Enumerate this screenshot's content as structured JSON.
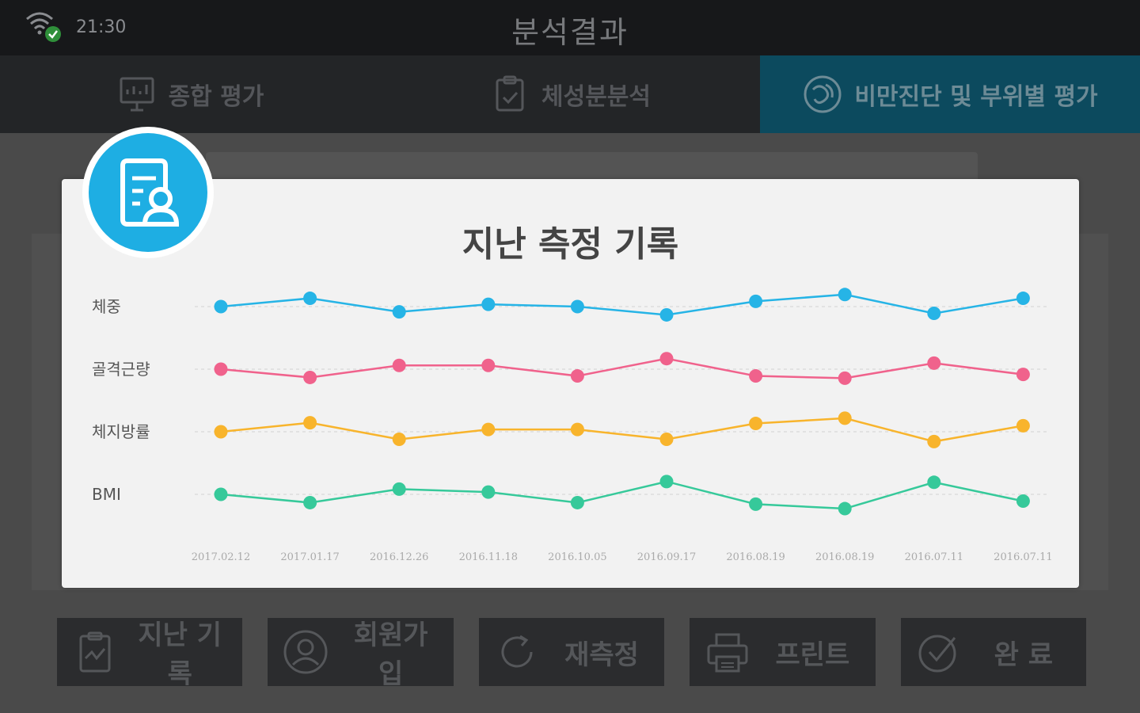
{
  "status": {
    "time": "21:30",
    "wifi_icon": "wifi-connected-icon"
  },
  "app": {
    "title": "분석결과"
  },
  "tabs": [
    {
      "label": "종합 평가",
      "icon": "presentation-icon"
    },
    {
      "label": "체성분분석",
      "icon": "clipboard-icon"
    },
    {
      "label": "비만진단 및 부위별 평가",
      "icon": "body-icon"
    }
  ],
  "bottom_buttons": [
    {
      "label": "지난 기록",
      "icon": "clipboard-chart-icon"
    },
    {
      "label": "회원가입",
      "icon": "user-icon"
    },
    {
      "label": "재측정",
      "icon": "refresh-icon"
    },
    {
      "label": "프린트",
      "icon": "printer-icon"
    },
    {
      "label": "완 료",
      "icon": "check-circle-icon"
    }
  ],
  "modal": {
    "title": "지난 측정 기록",
    "badge_icon": "profile-document-icon"
  },
  "chart_data": {
    "type": "line",
    "title": "지난 측정 기록",
    "grid": true,
    "x": [
      "2017.02.12",
      "2017.01.17",
      "2016.12.26",
      "2016.11.18",
      "2016.10.05",
      "2016.09.17",
      "2016.08.19",
      "2016.08.19",
      "2016.07.11",
      "2016.07.11"
    ],
    "series": [
      {
        "name": "체중",
        "color": "#26b4e6",
        "values": [
          0,
          11,
          -7,
          3,
          0,
          -11,
          7,
          16,
          -9,
          11
        ]
      },
      {
        "name": "골격근량",
        "color": "#f0628c",
        "values": [
          0,
          -11,
          5,
          5,
          -9,
          14,
          -9,
          -12,
          8,
          -7
        ]
      },
      {
        "name": "체지방률",
        "color": "#f8b42c",
        "values": [
          0,
          12,
          -10,
          3,
          3,
          -10,
          11,
          18,
          -13,
          8
        ]
      },
      {
        "name": "BMI",
        "color": "#36c99a",
        "values": [
          0,
          -11,
          7,
          3,
          -11,
          17,
          -13,
          -19,
          16,
          -9
        ]
      }
    ]
  }
}
